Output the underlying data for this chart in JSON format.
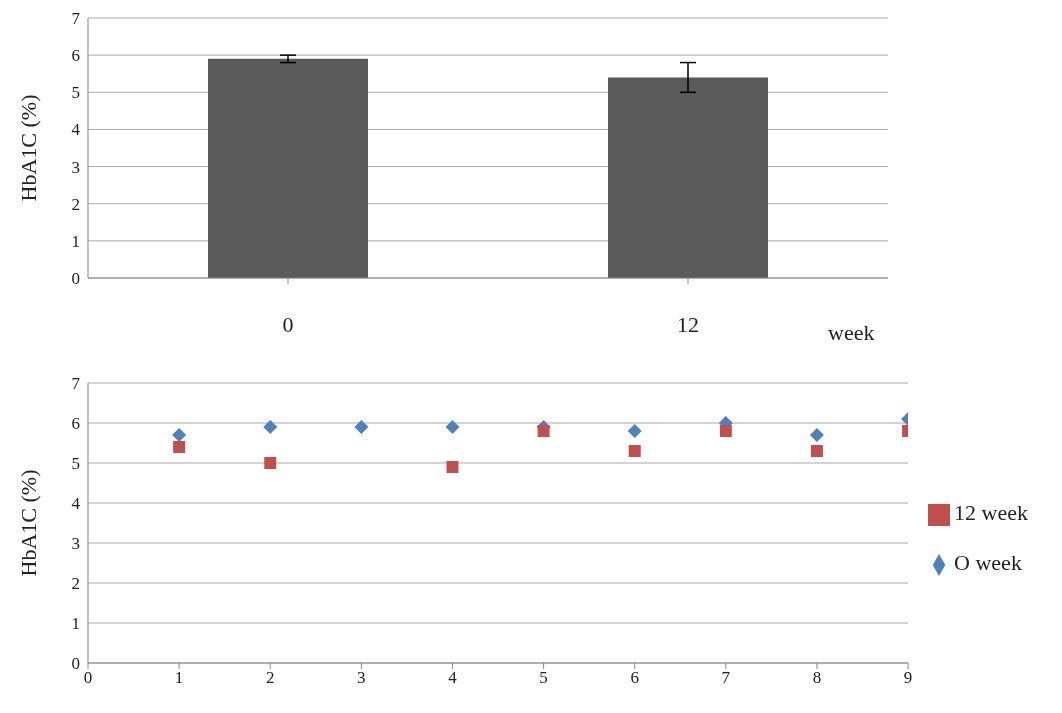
{
  "chart_data": [
    {
      "type": "bar",
      "ylabel": "HbA1C (%)",
      "xlabel": "week",
      "categories": [
        "0",
        "12"
      ],
      "values": [
        5.9,
        5.4
      ],
      "errors": [
        0.1,
        0.4
      ],
      "color": "#5a5a5a",
      "ylim": [
        0,
        7
      ],
      "yticks": [
        0,
        1,
        2,
        3,
        4,
        5,
        6,
        7
      ],
      "grid": "y"
    },
    {
      "type": "scatter",
      "ylabel": "HbA1C (%)",
      "xlim": [
        0,
        9
      ],
      "xticks": [
        0,
        1,
        2,
        3,
        4,
        5,
        6,
        7,
        8,
        9
      ],
      "ylim": [
        0,
        7
      ],
      "yticks": [
        0,
        1,
        2,
        3,
        4,
        5,
        6,
        7
      ],
      "grid": "y",
      "legend": "right",
      "series": [
        {
          "name": "O week",
          "color": "#4f81bd",
          "marker": "diamond",
          "x": [
            1,
            2,
            3,
            4,
            5,
            6,
            7,
            8,
            9
          ],
          "values": [
            5.7,
            5.9,
            5.9,
            5.9,
            5.9,
            5.8,
            6.0,
            5.7,
            6.1
          ]
        },
        {
          "name": "12 week",
          "color": "#c0504d",
          "marker": "square",
          "x": [
            1,
            2,
            4,
            5,
            6,
            7,
            8,
            9
          ],
          "values": [
            5.4,
            5.0,
            4.9,
            5.8,
            5.3,
            5.8,
            5.3,
            5.8
          ]
        }
      ]
    }
  ]
}
